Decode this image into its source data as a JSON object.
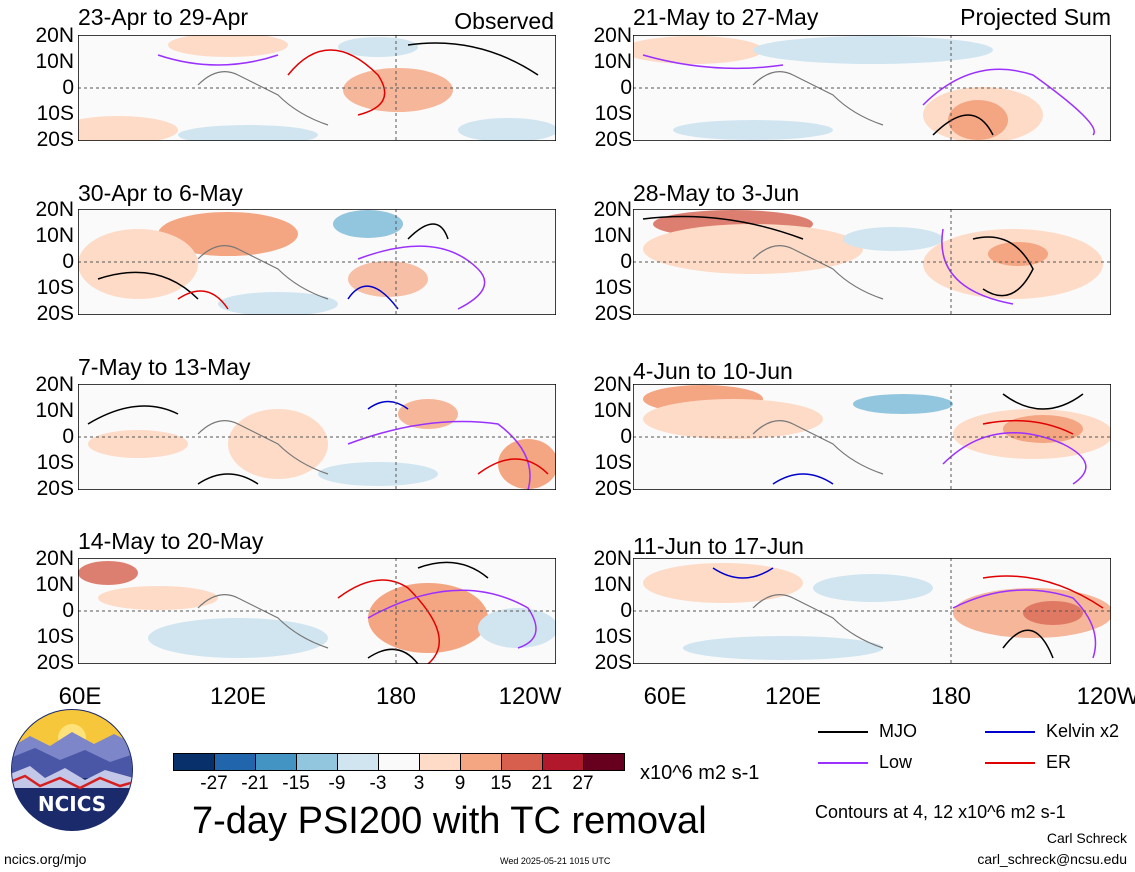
{
  "panels": [
    {
      "title": "23-Apr to 29-Apr",
      "tag": "Observed"
    },
    {
      "title": "21-May to 27-May",
      "tag": "Projected Sum"
    },
    {
      "title": "30-Apr to 6-May",
      "tag": ""
    },
    {
      "title": "28-May to 3-Jun",
      "tag": ""
    },
    {
      "title": "7-May to 13-May",
      "tag": ""
    },
    {
      "title": "4-Jun to 10-Jun",
      "tag": ""
    },
    {
      "title": "14-May to 20-May",
      "tag": ""
    },
    {
      "title": "11-Jun to 17-Jun",
      "tag": ""
    }
  ],
  "lat_labels": [
    "20N",
    "10N",
    "0",
    "10S",
    "20S"
  ],
  "lon_labels": [
    "60E",
    "120E",
    "180",
    "120W"
  ],
  "lon_labels_right": [
    "60E",
    "120E",
    "180",
    "120W"
  ],
  "colorbar": {
    "ticks": [
      "-27",
      "-21",
      "-15",
      "-9",
      "-3",
      "3",
      "9",
      "15",
      "21",
      "27"
    ],
    "colors": [
      "#08306b",
      "#2166ac",
      "#4393c3",
      "#92c5de",
      "#d1e5f0",
      "#fafafa",
      "#fddbc7",
      "#f4a582",
      "#d6604d",
      "#b2182b",
      "#67001f"
    ],
    "units": "x10^6 m2 s-1"
  },
  "main_title": "7-day PSI200 with TC removal",
  "legend": [
    {
      "label": "MJO",
      "color": "#000000"
    },
    {
      "label": "Kelvin x2",
      "color": "#0000cc"
    },
    {
      "label": "Low",
      "color": "#9b30ff"
    },
    {
      "label": "ER",
      "color": "#e00000"
    }
  ],
  "contour_note": "Contours at 4, 12 x10^6 m2 s-1",
  "logo_text": "NCICS",
  "footer_url": "ncics.org/mjo",
  "timestamp": "Wed 2025-05-21 1015 UTC",
  "author_name": "Carl Schreck",
  "author_email": "carl_schreck@ncsu.edu"
}
